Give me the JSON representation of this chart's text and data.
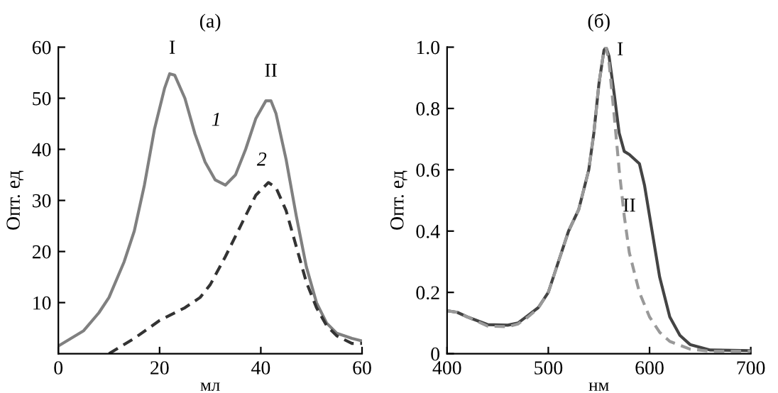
{
  "chart_data": [
    {
      "type": "line",
      "title": "(а)",
      "xlabel": "мл",
      "ylabel": "Опт. ед",
      "xlim": [
        0,
        60
      ],
      "ylim": [
        0,
        60
      ],
      "xticks": [
        0,
        20,
        40,
        60
      ],
      "yticks": [
        10,
        20,
        30,
        40,
        50,
        60
      ],
      "grid": false,
      "legend": false,
      "series": [
        {
          "color": "#808080",
          "line_style": "solid",
          "x": [
            0,
            5,
            8,
            10,
            13,
            15,
            17,
            19,
            21,
            22,
            23,
            25,
            27,
            29,
            31,
            33,
            35,
            37,
            39,
            41,
            42,
            43,
            45,
            47,
            49,
            51,
            53,
            55,
            58,
            60
          ],
          "values": [
            1.5,
            4.5,
            8,
            11,
            18,
            24,
            33,
            44,
            52,
            54.8,
            54.5,
            50,
            43,
            37.5,
            34,
            33,
            35,
            40,
            46,
            49.5,
            49.5,
            47,
            38,
            27,
            17,
            10,
            6,
            4,
            3,
            2.5
          ]
        },
        {
          "color": "#333333",
          "line_style": "dashed",
          "x": [
            10,
            15,
            20,
            25,
            28,
            30,
            33,
            36,
            39,
            41.5,
            43,
            45,
            47,
            49,
            51,
            53,
            55,
            58,
            60
          ],
          "values": [
            0,
            3,
            6.5,
            9,
            11,
            13.5,
            19,
            25,
            31,
            33.5,
            32.5,
            28,
            21,
            14,
            9,
            5.5,
            3.5,
            2,
            2
          ]
        }
      ],
      "annotations": [
        "I",
        "II",
        "1",
        "2"
      ]
    },
    {
      "type": "line",
      "title": "(б)",
      "xlabel": "нм",
      "ylabel": "Опт. ед",
      "xlim": [
        400,
        700
      ],
      "ylim": [
        0,
        1.0
      ],
      "xticks": [
        400,
        500,
        600,
        700
      ],
      "yticks": [
        0,
        0.2,
        0.4,
        0.6,
        0.8,
        {
          "value": 1.0,
          "label": "1.0"
        }
      ],
      "grid": false,
      "legend": false,
      "series": [
        {
          "color": "#444444",
          "line_style": "solid",
          "x": [
            400,
            410,
            420,
            440,
            460,
            470,
            480,
            490,
            500,
            510,
            520,
            530,
            540,
            545,
            550,
            555,
            557,
            560,
            565,
            570,
            575,
            580,
            590,
            595,
            600,
            610,
            620,
            630,
            640,
            660,
            700
          ],
          "values": [
            0.14,
            0.135,
            0.12,
            0.095,
            0.093,
            0.1,
            0.125,
            0.15,
            0.2,
            0.3,
            0.4,
            0.47,
            0.6,
            0.72,
            0.88,
            0.99,
            1.0,
            0.97,
            0.85,
            0.72,
            0.66,
            0.65,
            0.62,
            0.55,
            0.45,
            0.25,
            0.12,
            0.06,
            0.03,
            0.012,
            0.01
          ]
        },
        {
          "color": "#999999",
          "line_style": "dashed",
          "x": [
            400,
            410,
            420,
            440,
            460,
            470,
            480,
            490,
            500,
            510,
            520,
            530,
            540,
            545,
            550,
            555,
            557,
            560,
            565,
            570,
            575,
            580,
            590,
            600,
            610,
            620,
            640,
            660,
            700
          ],
          "values": [
            0.14,
            0.135,
            0.12,
            0.09,
            0.088,
            0.097,
            0.12,
            0.148,
            0.2,
            0.3,
            0.4,
            0.47,
            0.6,
            0.72,
            0.88,
            0.99,
            1.0,
            0.95,
            0.78,
            0.6,
            0.45,
            0.33,
            0.2,
            0.12,
            0.07,
            0.04,
            0.015,
            0.008,
            0.008
          ]
        }
      ],
      "annotations": [
        "I",
        "II"
      ]
    }
  ]
}
